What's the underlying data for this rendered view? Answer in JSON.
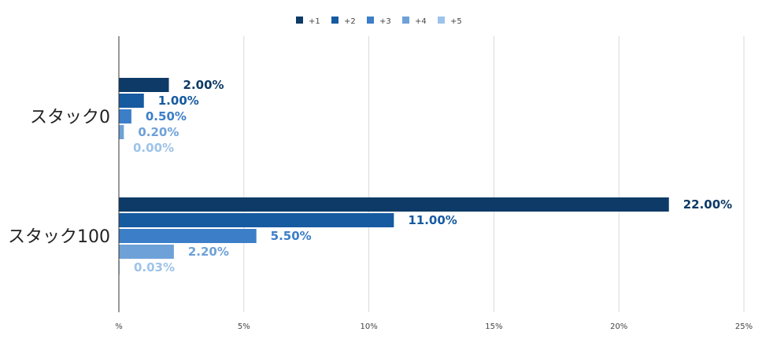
{
  "chart_data": {
    "type": "bar",
    "orientation": "horizontal",
    "categories": [
      "スタック0",
      "スタック100"
    ],
    "series": [
      {
        "name": "+1",
        "color": "#0d3a66",
        "values": [
          2.0,
          22.0
        ],
        "labels": [
          "2.00%",
          "22.00%"
        ]
      },
      {
        "name": "+2",
        "color": "#165aa0",
        "values": [
          1.0,
          11.0
        ],
        "labels": [
          "1.00%",
          "11.00%"
        ]
      },
      {
        "name": "+3",
        "color": "#3c7ec8",
        "values": [
          0.5,
          5.5
        ],
        "labels": [
          "0.50%",
          "5.50%"
        ]
      },
      {
        "name": "+4",
        "color": "#6ea1d8",
        "values": [
          0.2,
          2.2
        ],
        "labels": [
          "0.20%",
          "2.20%"
        ]
      },
      {
        "name": "+5",
        "color": "#9dc3ea",
        "values": [
          0.0,
          0.03
        ],
        "labels": [
          "0.00%",
          "0.03%"
        ]
      }
    ],
    "xlim": [
      0,
      25
    ],
    "x_ticks": [
      0,
      5,
      10,
      15,
      20,
      25
    ],
    "x_tick_labels": [
      "%",
      "5%",
      "10%",
      "15%",
      "20%",
      "25%"
    ],
    "legend_position": "top-center",
    "grid": true
  }
}
